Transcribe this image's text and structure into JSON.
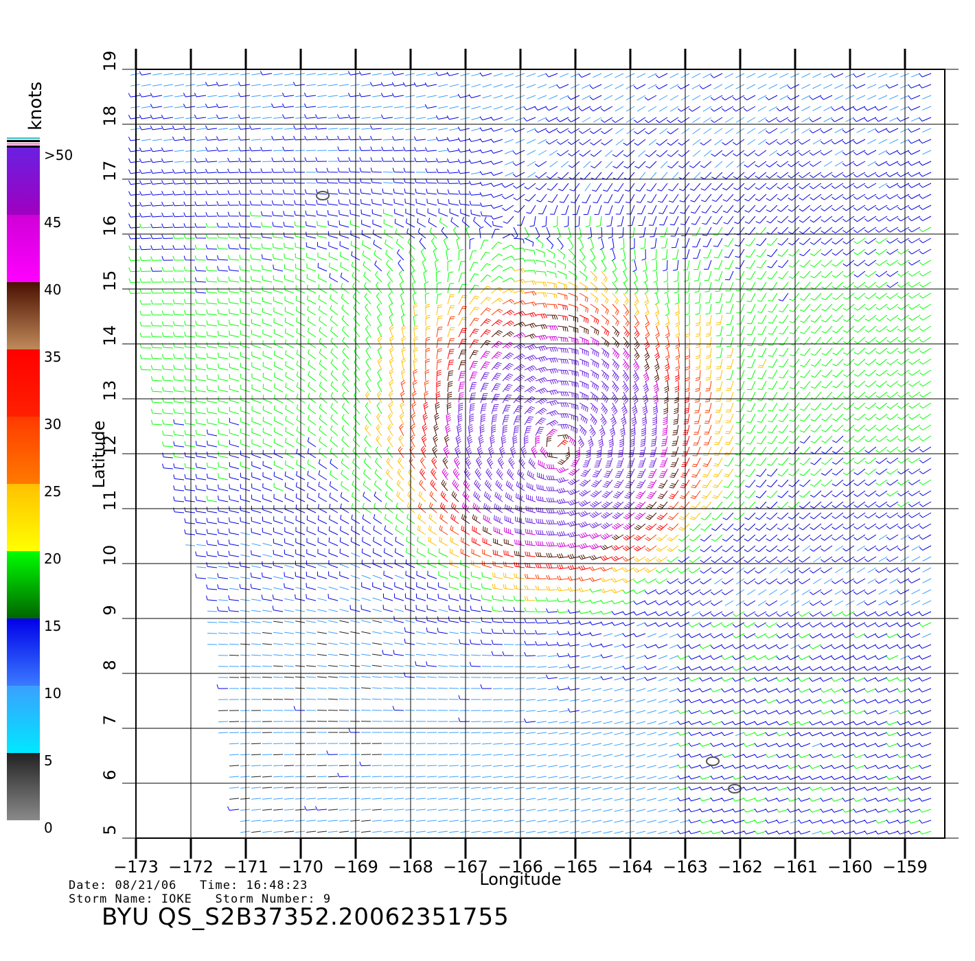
{
  "map": {
    "x_axis_label": "Longitude",
    "y_axis_label": "Latitude",
    "lon_ticks": [
      "−173",
      "−172",
      "−171",
      "−170",
      "−169",
      "−168",
      "−167",
      "−166",
      "−165",
      "−164",
      "−163",
      "−162",
      "−161",
      "−160",
      "−159"
    ],
    "lat_ticks": [
      "5",
      "6",
      "7",
      "8",
      "9",
      "10",
      "11",
      "12",
      "13",
      "14",
      "15",
      "16",
      "17",
      "18",
      "19"
    ],
    "lon_range": [
      -173,
      -158.4
    ],
    "lat_range": [
      5,
      19
    ],
    "grid": true,
    "storm_center": {
      "lon": -165.3,
      "lat": 12.1
    },
    "islands": [
      {
        "lon": -169.6,
        "lat": 16.7
      },
      {
        "lon": -162.5,
        "lat": 6.4
      },
      {
        "lon": -162.1,
        "lat": 5.9
      }
    ]
  },
  "colorbar": {
    "unit": "knots",
    "labels": [
      ">50",
      "45",
      "40",
      "35",
      "30",
      "25",
      "20",
      "15",
      "10",
      "5",
      "0"
    ],
    "bands": [
      {
        "from": 0,
        "to": 5,
        "colors": [
          "#8a8a8a",
          "#222222"
        ]
      },
      {
        "from": 5,
        "to": 10,
        "colors": [
          "#00e8ff",
          "#3aa0ff"
        ]
      },
      {
        "from": 10,
        "to": 15,
        "colors": [
          "#3a7aff",
          "#0000e8"
        ]
      },
      {
        "from": 15,
        "to": 20,
        "colors": [
          "#006400",
          "#00ff00"
        ]
      },
      {
        "from": 20,
        "to": 25,
        "colors": [
          "#ffff00",
          "#ffc000"
        ]
      },
      {
        "from": 25,
        "to": 30,
        "colors": [
          "#ff7a00",
          "#ff3a00"
        ]
      },
      {
        "from": 30,
        "to": 35,
        "colors": [
          "#ff2000",
          "#ff0000"
        ]
      },
      {
        "from": 35,
        "to": 40,
        "colors": [
          "#c08a5a",
          "#4a1000"
        ]
      },
      {
        "from": 40,
        "to": 45,
        "colors": [
          "#ff00ff",
          "#d000d8"
        ]
      },
      {
        "from": 45,
        "to": 50,
        "colors": [
          "#a000c0",
          "#6a20e0"
        ]
      }
    ]
  },
  "footer": {
    "date_label": "Date:",
    "date": "08/21/06",
    "time_label": "Time:",
    "time": "16:48:23",
    "storm_name_label": "Storm Name:",
    "storm_name": "IOKE",
    "storm_number_label": "Storm Number:",
    "storm_number": "9",
    "title": "BYU QS_S2B37352.20062351755"
  }
}
